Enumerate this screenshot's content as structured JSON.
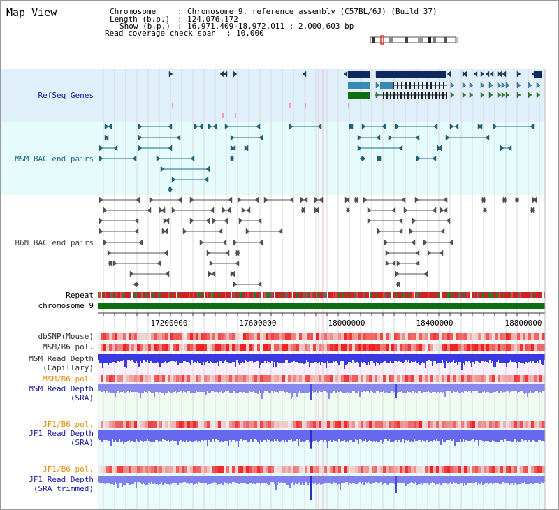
{
  "page": {
    "title": "Map View"
  },
  "info": {
    "chromosome_label": "Chromosome",
    "chromosome_value": "Chromosome 9, reference assembly (C57BL/6J) (Build 37)",
    "length_label": "Length (b.p.)",
    "length_value": "124,076,172",
    "show_label": "Show (b.p.)",
    "show_value": "16,971,409-18,972,011 : 2,000,603 bp",
    "coverage_label": "Read coverage check span",
    "coverage_value": "10,000"
  },
  "tracks": {
    "refseq": "RefSeq Genes",
    "msm_bac": "MSM BAC end pairs",
    "b6n_bac": "B6N BAC end pairs",
    "repeat": "Repeat",
    "chromosome": "chromosome 9",
    "dbsnp": "dbSNP(Mouse)",
    "msm_pol": "MSM/B6 pol.",
    "msm_depth_cap_1": "MSM Read Depth",
    "msm_depth_cap_2": "(Capillary)",
    "msm_pol_2": "MSM/B6 pol.",
    "msm_depth_sra_1": "MSM Read Depth",
    "msm_depth_sra_2": "(SRA)",
    "jf1_pol_1": "JF1/B6 pol.",
    "jf1_depth_sra_1": "JF1 Read Depth",
    "jf1_depth_sra_2": "(SRA)",
    "jf1_pol_2": "JF1/B6 pol.",
    "jf1_depth_trim_1": "JF1 Read Depth",
    "jf1_depth_trim_2": "(SRA trimmed)"
  },
  "axis": {
    "ticks": [
      "17200000",
      "17600000",
      "18000000",
      "18400000",
      "18800000"
    ]
  },
  "colors": {
    "refseq_bg": "#dff0fb",
    "msm_bg": "#e6fbfb",
    "b6n_bg": "#ffffff",
    "repeat": "#cc2222",
    "chromosome": "#0e6e0e",
    "navy": "#1a1aa0",
    "orange": "#e09010",
    "teal_label": "#1a6a8a"
  }
}
